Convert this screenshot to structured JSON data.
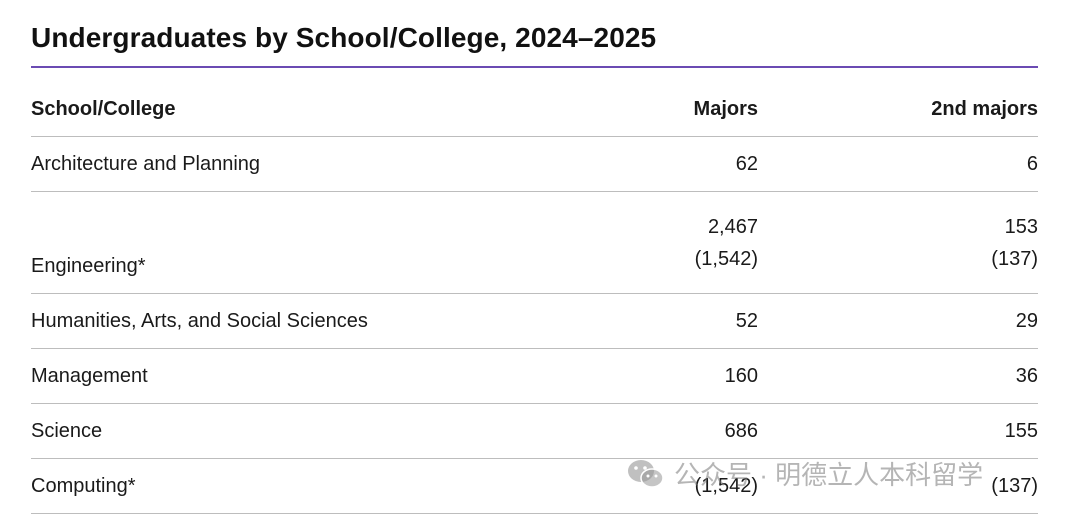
{
  "title": "Undergraduates by School/College, 2024–2025",
  "accent_color": "#6b4bb3",
  "table": {
    "headers": {
      "school": "School/College",
      "majors": "Majors",
      "second_majors": "2nd majors"
    },
    "rows": [
      {
        "school": "Architecture and Planning",
        "majors": "62",
        "second_majors": "6"
      },
      {
        "school": "Engineering*",
        "majors": "2,467",
        "majors_sub": "(1,542)",
        "second_majors": "153",
        "second_majors_sub": "(137)"
      },
      {
        "school": "Humanities, Arts, and Social Sciences",
        "majors": "52",
        "second_majors": "29"
      },
      {
        "school": "Management",
        "majors": "160",
        "second_majors": "36"
      },
      {
        "school": "Science",
        "majors": "686",
        "second_majors": "155"
      },
      {
        "school": "Computing*",
        "majors": "(1,542)",
        "second_majors": "(137)"
      }
    ]
  },
  "watermark": {
    "icon": "wechat-icon",
    "text": "公众号 · 明德立人本科留学"
  }
}
